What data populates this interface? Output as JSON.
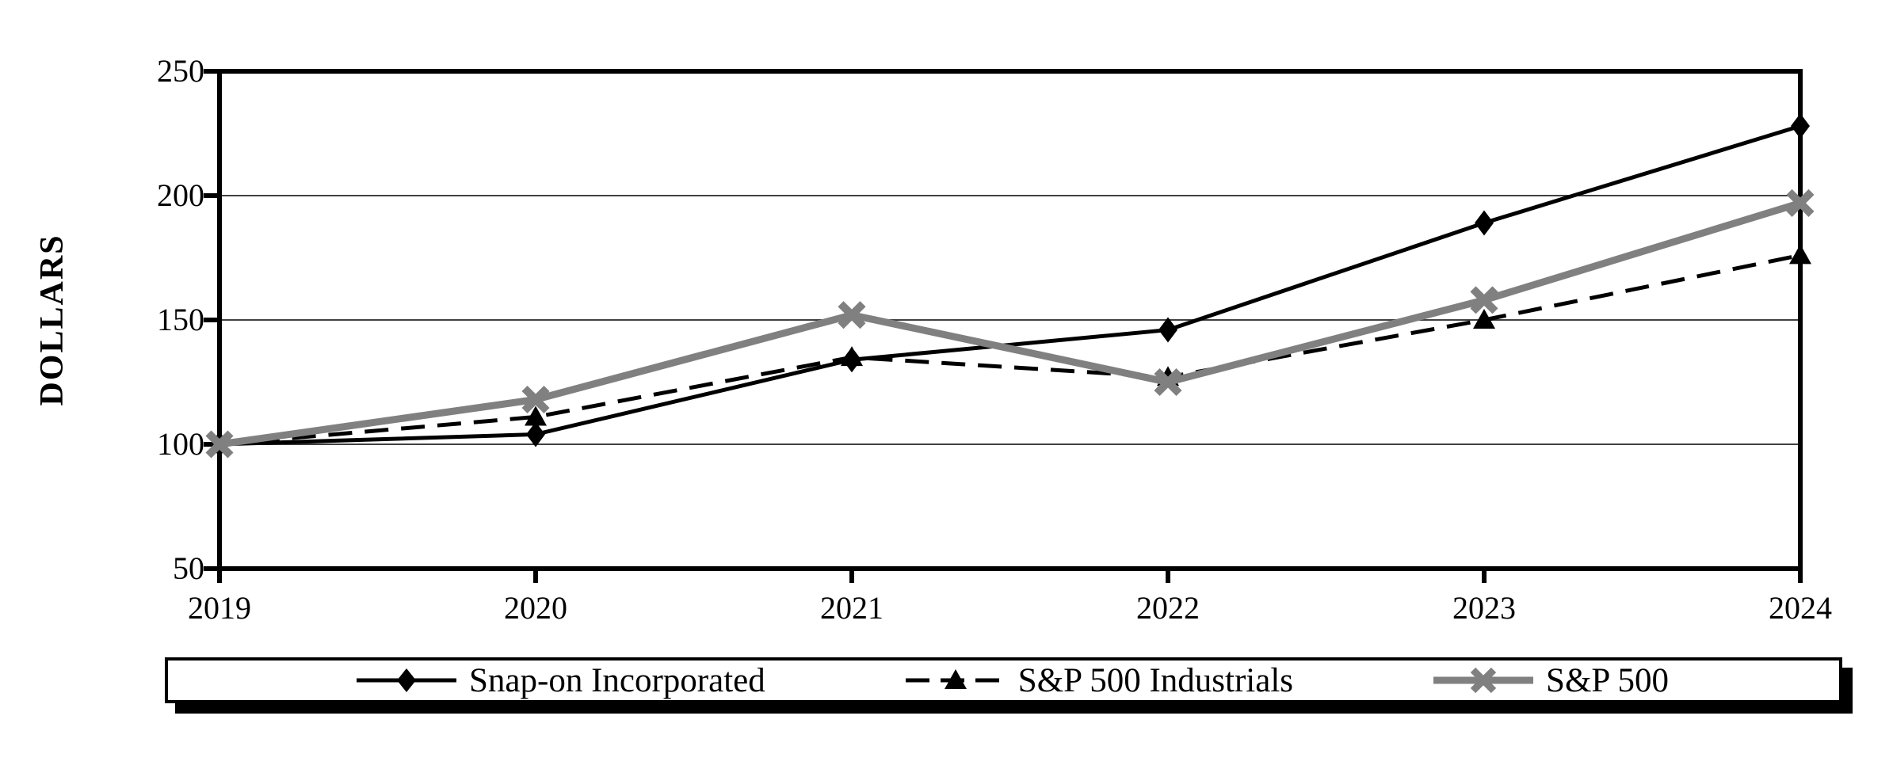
{
  "chart_data": {
    "type": "line",
    "title": "",
    "ylabel": "DOLLARS",
    "xlabel": "",
    "x_categories": [
      "2019",
      "2020",
      "2021",
      "2022",
      "2023",
      "2024"
    ],
    "y_ticks": [
      250,
      200,
      150,
      100,
      50
    ],
    "ylim": [
      50,
      250
    ],
    "gridline_values": [
      100,
      150,
      200
    ],
    "grid": "horizontal",
    "legend_position": "bottom",
    "series": [
      {
        "name": "Snap-on Incorporated",
        "values": [
          100,
          104,
          134,
          146,
          189,
          228
        ],
        "color": "#000000",
        "line_style": "solid",
        "line_width": 5,
        "marker": "diamond"
      },
      {
        "name": "S&P 500 Industrials",
        "values": [
          100,
          111,
          135,
          127,
          150,
          176
        ],
        "color": "#000000",
        "line_style": "dashed",
        "line_width": 5,
        "marker": "triangle"
      },
      {
        "name": "S&P 500",
        "values": [
          100,
          118,
          152,
          125,
          158,
          197
        ],
        "color": "#808080",
        "line_style": "solid",
        "line_width": 9,
        "marker": "x"
      }
    ],
    "colors": {
      "axis": "#000000",
      "gridline": "#404040",
      "background": "#ffffff"
    }
  }
}
